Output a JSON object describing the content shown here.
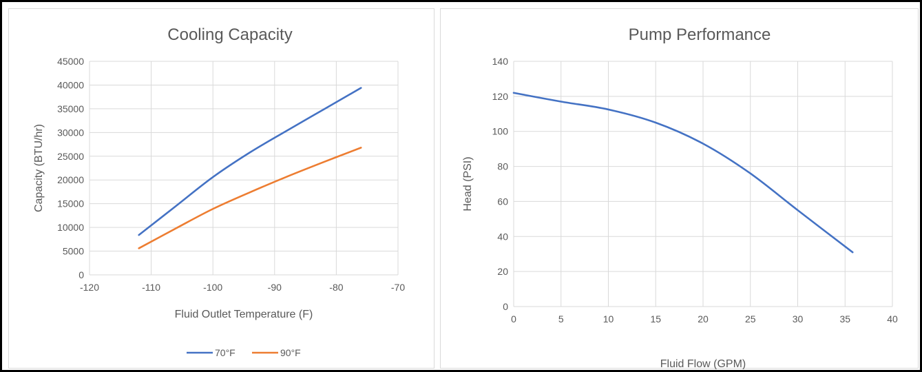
{
  "chart_data": [
    {
      "type": "line",
      "title": "Cooling Capacity",
      "xlabel": "Fluid Outlet Temperature (F)",
      "ylabel": "Capacity (BTU/hr)",
      "xlim": [
        -120,
        -70
      ],
      "ylim": [
        0,
        45000
      ],
      "xticks": [
        -120,
        -110,
        -100,
        -90,
        -80,
        -70
      ],
      "xtick_labels": [
        "-120",
        "-110",
        "-100",
        "-90",
        "-80",
        "-70"
      ],
      "yticks": [
        0,
        5000,
        10000,
        15000,
        20000,
        25000,
        30000,
        35000,
        40000,
        45000
      ],
      "ytick_labels": [
        "0",
        "5000",
        "10000",
        "15000",
        "20000",
        "25000",
        "30000",
        "35000",
        "40000",
        "45000"
      ],
      "grid": true,
      "legend": "bottom",
      "series": [
        {
          "name": "70°F",
          "color": "#4472c4",
          "x": [
            -112,
            -106,
            -100,
            -94,
            -88,
            -82,
            -76
          ],
          "y": [
            8400,
            14500,
            20600,
            25800,
            30400,
            34900,
            39400
          ]
        },
        {
          "name": "90°F",
          "color": "#ed7d31",
          "x": [
            -112,
            -106,
            -100,
            -94,
            -88,
            -82,
            -76
          ],
          "y": [
            5600,
            9800,
            13900,
            17400,
            20700,
            23800,
            26800
          ]
        }
      ]
    },
    {
      "type": "line",
      "title": "Pump Performance",
      "xlabel": "Fluid Flow (GPM)",
      "ylabel": "Head (PSI)",
      "xlim": [
        0,
        40
      ],
      "ylim": [
        0,
        140
      ],
      "xticks": [
        0,
        5,
        10,
        15,
        20,
        25,
        30,
        35,
        40
      ],
      "xtick_labels": [
        "0",
        "5",
        "10",
        "15",
        "20",
        "25",
        "30",
        "35",
        "40"
      ],
      "yticks": [
        0,
        20,
        40,
        60,
        80,
        100,
        120,
        140
      ],
      "ytick_labels": [
        "0",
        "20",
        "40",
        "60",
        "80",
        "100",
        "120",
        "140"
      ],
      "grid": true,
      "legend": "none",
      "series": [
        {
          "color": "#4472c4",
          "x": [
            0,
            5,
            10,
            15,
            20,
            25,
            30,
            35.8
          ],
          "y": [
            122,
            117,
            112.5,
            105,
            93,
            76,
            55,
            31
          ]
        }
      ]
    }
  ]
}
